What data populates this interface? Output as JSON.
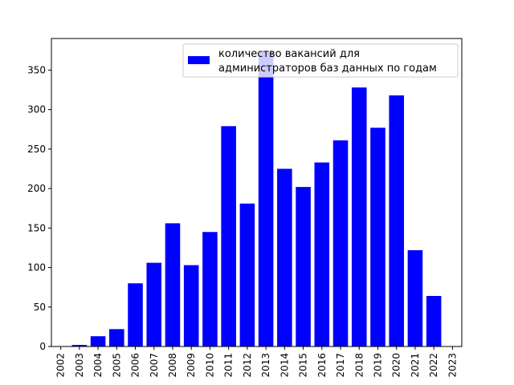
{
  "chart_data": {
    "type": "bar",
    "categories": [
      "2003",
      "2004",
      "2005",
      "2006",
      "2007",
      "2008",
      "2009",
      "2010",
      "2011",
      "2012",
      "2013",
      "2014",
      "2015",
      "2016",
      "2017",
      "2018",
      "2019",
      "2020",
      "2021",
      "2022"
    ],
    "x_ticks": [
      "2002",
      "2003",
      "2004",
      "2005",
      "2006",
      "2007",
      "2008",
      "2009",
      "2010",
      "2011",
      "2012",
      "2013",
      "2014",
      "2015",
      "2016",
      "2017",
      "2018",
      "2019",
      "2020",
      "2021",
      "2022",
      "2023"
    ],
    "series": [
      {
        "name": "количество вакансий для администраторов баз данных по годам",
        "values": [
          2,
          13,
          22,
          80,
          106,
          156,
          103,
          145,
          279,
          181,
          373,
          225,
          202,
          233,
          261,
          328,
          277,
          318,
          122,
          64
        ],
        "color": "#0000ff"
      }
    ],
    "legend": {
      "line1": "количество вакансий для",
      "line2": "администраторов баз данных по годам",
      "placement": "top-right"
    },
    "y_ticks": [
      "0",
      "50",
      "100",
      "150",
      "200",
      "250",
      "300",
      "350"
    ],
    "xlim": [
      2001.5,
      2023.5
    ],
    "ylim": [
      0,
      390
    ],
    "title": "",
    "xlabel": "",
    "ylabel": "",
    "grid": false
  }
}
